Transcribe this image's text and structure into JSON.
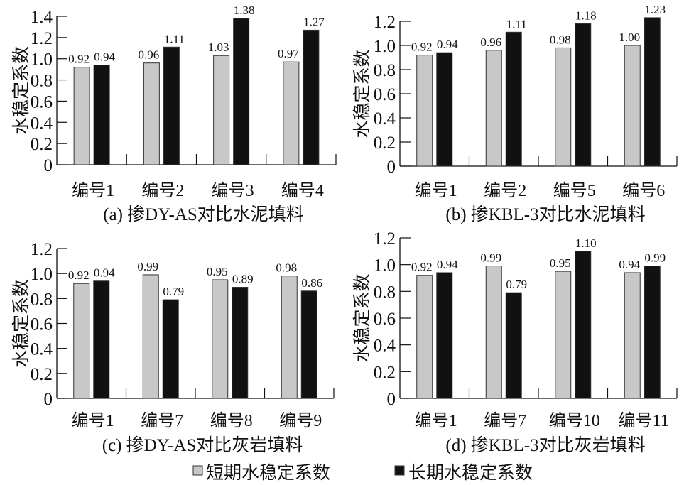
{
  "chart_data": [
    {
      "type": "bar",
      "title": "(a) 掺DY-AS对比水泥填料",
      "ylabel": "水稳定系数",
      "ylim": [
        0,
        1.4
      ],
      "yticks": [
        0,
        0.2,
        0.4,
        0.6,
        0.8,
        1.0,
        1.2,
        1.4
      ],
      "yticklabels": [
        "0",
        "0.2",
        "0.4",
        "0.6",
        "0.8",
        "1.0",
        "1.2",
        "1.4"
      ],
      "categories": [
        "编号1",
        "编号2",
        "编号3",
        "编号4"
      ],
      "series": [
        {
          "name": "短期水稳定系数",
          "color": "#c8c8c8",
          "values": [
            0.92,
            0.96,
            1.03,
            0.97
          ],
          "labels": [
            "0.92",
            "0.96",
            "1.03",
            "0.97"
          ]
        },
        {
          "name": "长期水稳定系数",
          "color": "#111111",
          "values": [
            0.94,
            1.11,
            1.38,
            1.27
          ],
          "labels": [
            "0.94",
            "1.11",
            "1.38",
            "1.27"
          ]
        }
      ]
    },
    {
      "type": "bar",
      "title": "(b) 掺KBL-3对比水泥填料",
      "ylabel": "水稳定系数",
      "ylim": [
        0,
        1.2
      ],
      "yticks": [
        0,
        0.2,
        0.4,
        0.6,
        0.8,
        1.0,
        1.2
      ],
      "yticklabels": [
        "0",
        "0.2",
        "0.4",
        "0.6",
        "0.8",
        "1.0",
        "1.2"
      ],
      "categories": [
        "编号1",
        "编号2",
        "编号5",
        "编号6"
      ],
      "series": [
        {
          "name": "短期水稳定系数",
          "color": "#c8c8c8",
          "values": [
            0.92,
            0.96,
            0.98,
            1.0
          ],
          "labels": [
            "0.92",
            "0.96",
            "0.98",
            "1.00"
          ]
        },
        {
          "name": "长期水稳定系数",
          "color": "#111111",
          "values": [
            0.94,
            1.11,
            1.18,
            1.23
          ],
          "labels": [
            "0.94",
            "1.11",
            "1.18",
            "1.23"
          ]
        }
      ]
    },
    {
      "type": "bar",
      "title": "(c) 掺DY-AS对比灰岩填料",
      "ylabel": "水稳定系数",
      "ylim": [
        0,
        1.2
      ],
      "yticks": [
        0,
        0.2,
        0.4,
        0.6,
        0.8,
        1.0,
        1.2
      ],
      "yticklabels": [
        "0",
        "0.2",
        "0.4",
        "0.6",
        "0.8",
        "1.0",
        "1.2"
      ],
      "categories": [
        "编号1",
        "编号7",
        "编号8",
        "编号9"
      ],
      "series": [
        {
          "name": "短期水稳定系数",
          "color": "#c8c8c8",
          "values": [
            0.92,
            0.99,
            0.95,
            0.98
          ],
          "labels": [
            "0.92",
            "0.99",
            "0.95",
            "0.98"
          ]
        },
        {
          "name": "长期水稳定系数",
          "color": "#111111",
          "values": [
            0.94,
            0.79,
            0.89,
            0.86
          ],
          "labels": [
            "0.94",
            "0.79",
            "0.89",
            "0.86"
          ]
        }
      ]
    },
    {
      "type": "bar",
      "title": "(d) 掺KBL-3对比灰岩填料",
      "ylabel": "水稳定系数",
      "ylim": [
        0,
        1.2
      ],
      "yticks": [
        0,
        0.2,
        0.4,
        0.6,
        0.8,
        1.0,
        1.2
      ],
      "yticklabels": [
        "0",
        "0.2",
        "0.4",
        "0.6",
        "0.8",
        "1.0",
        "1.2"
      ],
      "categories": [
        "编号1",
        "编号7",
        "编号10",
        "编号11"
      ],
      "series": [
        {
          "name": "短期水稳定系数",
          "color": "#c8c8c8",
          "values": [
            0.92,
            0.99,
            0.95,
            0.94
          ],
          "labels": [
            "0.92",
            "0.99",
            "0.95",
            "0.94"
          ]
        },
        {
          "name": "长期水稳定系数",
          "color": "#111111",
          "values": [
            0.94,
            0.79,
            1.1,
            0.99
          ],
          "labels": [
            "0.94",
            "0.79",
            "1.10",
            "0.99"
          ]
        }
      ]
    }
  ],
  "legend": {
    "placement": "bottom",
    "items": [
      {
        "label": "短期水稳定系数",
        "color": "#c8c8c8"
      },
      {
        "label": "长期水稳定系数",
        "color": "#111111"
      }
    ]
  }
}
